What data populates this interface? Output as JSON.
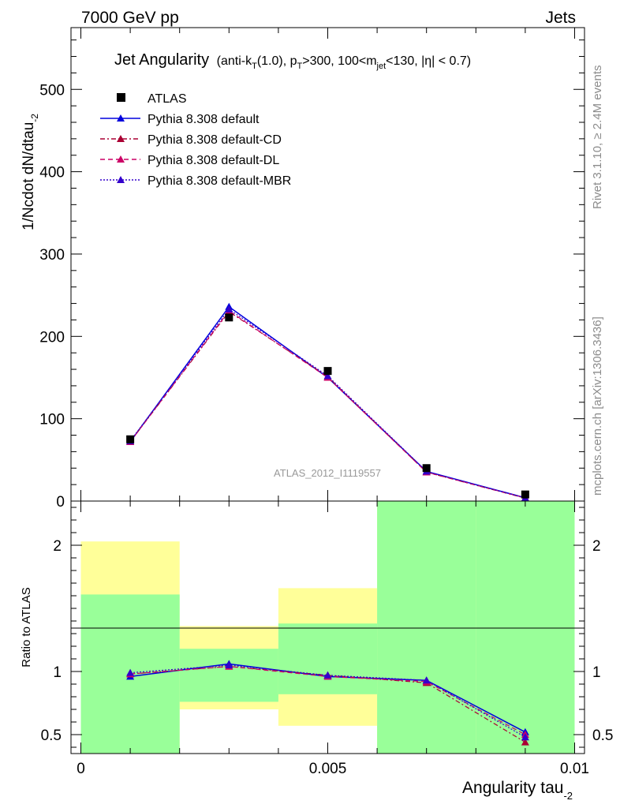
{
  "header": {
    "left": "7000 GeV pp",
    "right": "Jets"
  },
  "side_labels": {
    "rivet": "Rivet 3.1.10, ≥ 2.4M events",
    "mcplots": "mcplots.cern.ch [arXiv:1306.3436]"
  },
  "title": {
    "main": "Jet Angularity",
    "p1": "(anti-k",
    "s1": "T",
    "p2": "(1.0), p",
    "s2": "T",
    "p3": ">300, 100<m",
    "s3": "jet",
    "p4": "<130, |η| < 0.7)"
  },
  "analysis_tag": "ATLAS_2012_I1119557",
  "axes": {
    "ylabel_main": "1/Ncdot dN/dtau",
    "ylabel_main_sub": "-2",
    "ylabel_ratio": "Ratio to ATLAS",
    "xlabel": "Angularity tau",
    "xlabel_sub": "-2"
  },
  "legend": [
    {
      "label": "ATLAS",
      "color": "#000000",
      "marker": "square",
      "dash": ""
    },
    {
      "label": "Pythia 8.308 default",
      "color": "#0000dd",
      "marker": "triangle",
      "dash": ""
    },
    {
      "label": "Pythia 8.308 default-CD",
      "color": "#aa0033",
      "marker": "triangle",
      "dash": "6,3,2,3"
    },
    {
      "label": "Pythia 8.308 default-DL",
      "color": "#cc0066",
      "marker": "triangle",
      "dash": "6,4"
    },
    {
      "label": "Pythia 8.308 default-MBR",
      "color": "#3300cc",
      "marker": "triangle",
      "dash": "2,2"
    }
  ],
  "chart_data": {
    "type": "line",
    "x": [
      0.001,
      0.003,
      0.005,
      0.007,
      0.009
    ],
    "xlim": [
      -0.0002,
      0.0102
    ],
    "ylim": [
      0,
      575
    ],
    "ratio_ylim": [
      0.35,
      2.35
    ],
    "x_ticks": [
      {
        "value": 0,
        "label": "0"
      },
      {
        "value": 0.005,
        "label": "0.005"
      },
      {
        "value": 0.01,
        "label": "0.01"
      }
    ],
    "y_ticks": [
      {
        "value": 0,
        "label": "0"
      },
      {
        "value": 100,
        "label": "100"
      },
      {
        "value": 200,
        "label": "200"
      },
      {
        "value": 300,
        "label": "300"
      },
      {
        "value": 400,
        "label": "400"
      },
      {
        "value": 500,
        "label": "500"
      }
    ],
    "ratio_ticks": [
      {
        "value": 0.5,
        "label": "0.5"
      },
      {
        "value": 1,
        "label": "1"
      },
      {
        "value": 2,
        "label": "2"
      }
    ],
    "ratio_bands": [
      {
        "x0": 0,
        "x1": 0.002,
        "green": [
          0.35,
          1.61
        ],
        "yellow": [
          0.35,
          2.03
        ]
      },
      {
        "x0": 0.002,
        "x1": 0.004,
        "green": [
          0.76,
          1.18
        ],
        "yellow": [
          0.7,
          1.36
        ]
      },
      {
        "x0": 0.004,
        "x1": 0.006,
        "green": [
          0.82,
          1.38
        ],
        "yellow": [
          0.57,
          1.66
        ]
      },
      {
        "x0": 0.006,
        "x1": 0.008,
        "green": [
          0.35,
          2.35
        ],
        "yellow": [
          0.35,
          2.35
        ]
      },
      {
        "x0": 0.008,
        "x1": 0.01,
        "green": [
          0.35,
          2.35
        ],
        "yellow": [
          0.35,
          2.35
        ]
      }
    ],
    "data_series": {
      "name": "ATLAS",
      "values": [
        75,
        223,
        158,
        40,
        8
      ]
    },
    "series": [
      {
        "name": "Pythia 8.308 default",
        "values": [
          72,
          236,
          150,
          36,
          4
        ],
        "ratio": [
          0.96,
          1.06,
          0.96,
          0.93,
          0.52
        ]
      },
      {
        "name": "Pythia 8.308 default-CD",
        "values": [
          72,
          230,
          151,
          35,
          3.5
        ],
        "ratio": [
          0.98,
          1.04,
          0.97,
          0.91,
          0.44
        ]
      },
      {
        "name": "Pythia 8.308 default-DL",
        "values": [
          72,
          231,
          150,
          35,
          3.8
        ],
        "ratio": [
          0.98,
          1.04,
          0.96,
          0.92,
          0.5
        ]
      },
      {
        "name": "Pythia 8.308 default-MBR",
        "values": [
          73,
          233,
          152,
          36,
          3.7
        ],
        "ratio": [
          0.99,
          1.05,
          0.97,
          0.93,
          0.48
        ]
      }
    ]
  }
}
